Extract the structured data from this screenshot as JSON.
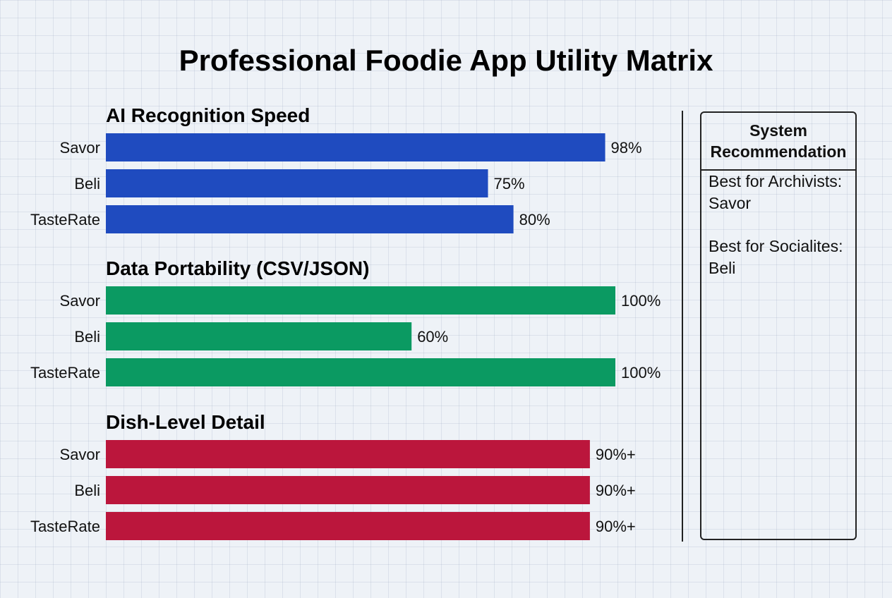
{
  "chart_data": {
    "type": "bar",
    "orientation": "horizontal",
    "title": "Professional Foodie App Utility Matrix",
    "xlim": [
      0,
      100
    ],
    "grid": false,
    "groups": [
      {
        "name": "AI Recognition Speed",
        "color": "#1f4bbf",
        "categories": [
          "Savor",
          "Beli",
          "TasteRate"
        ],
        "values": [
          98,
          75,
          80
        ],
        "labels": [
          "98%",
          "75%",
          "80%"
        ]
      },
      {
        "name": "Data Portability (CSV/JSON)",
        "color": "#0b9a62",
        "categories": [
          "Savor",
          "Beli",
          "TasteRate"
        ],
        "values": [
          100,
          60,
          100
        ],
        "labels": [
          "100%",
          "60%",
          "100%"
        ]
      },
      {
        "name": "Dish-Level Detail",
        "color": "#bb163c",
        "categories": [
          "Savor",
          "Beli",
          "TasteRate"
        ],
        "values": [
          95,
          95,
          95
        ],
        "labels": [
          "90%+",
          "90%+",
          "90%+"
        ]
      }
    ]
  },
  "recommendation": {
    "header": "System Recommendation",
    "items": [
      "Best for Archivists: Savor",
      "Best for Socialites: Beli"
    ]
  }
}
